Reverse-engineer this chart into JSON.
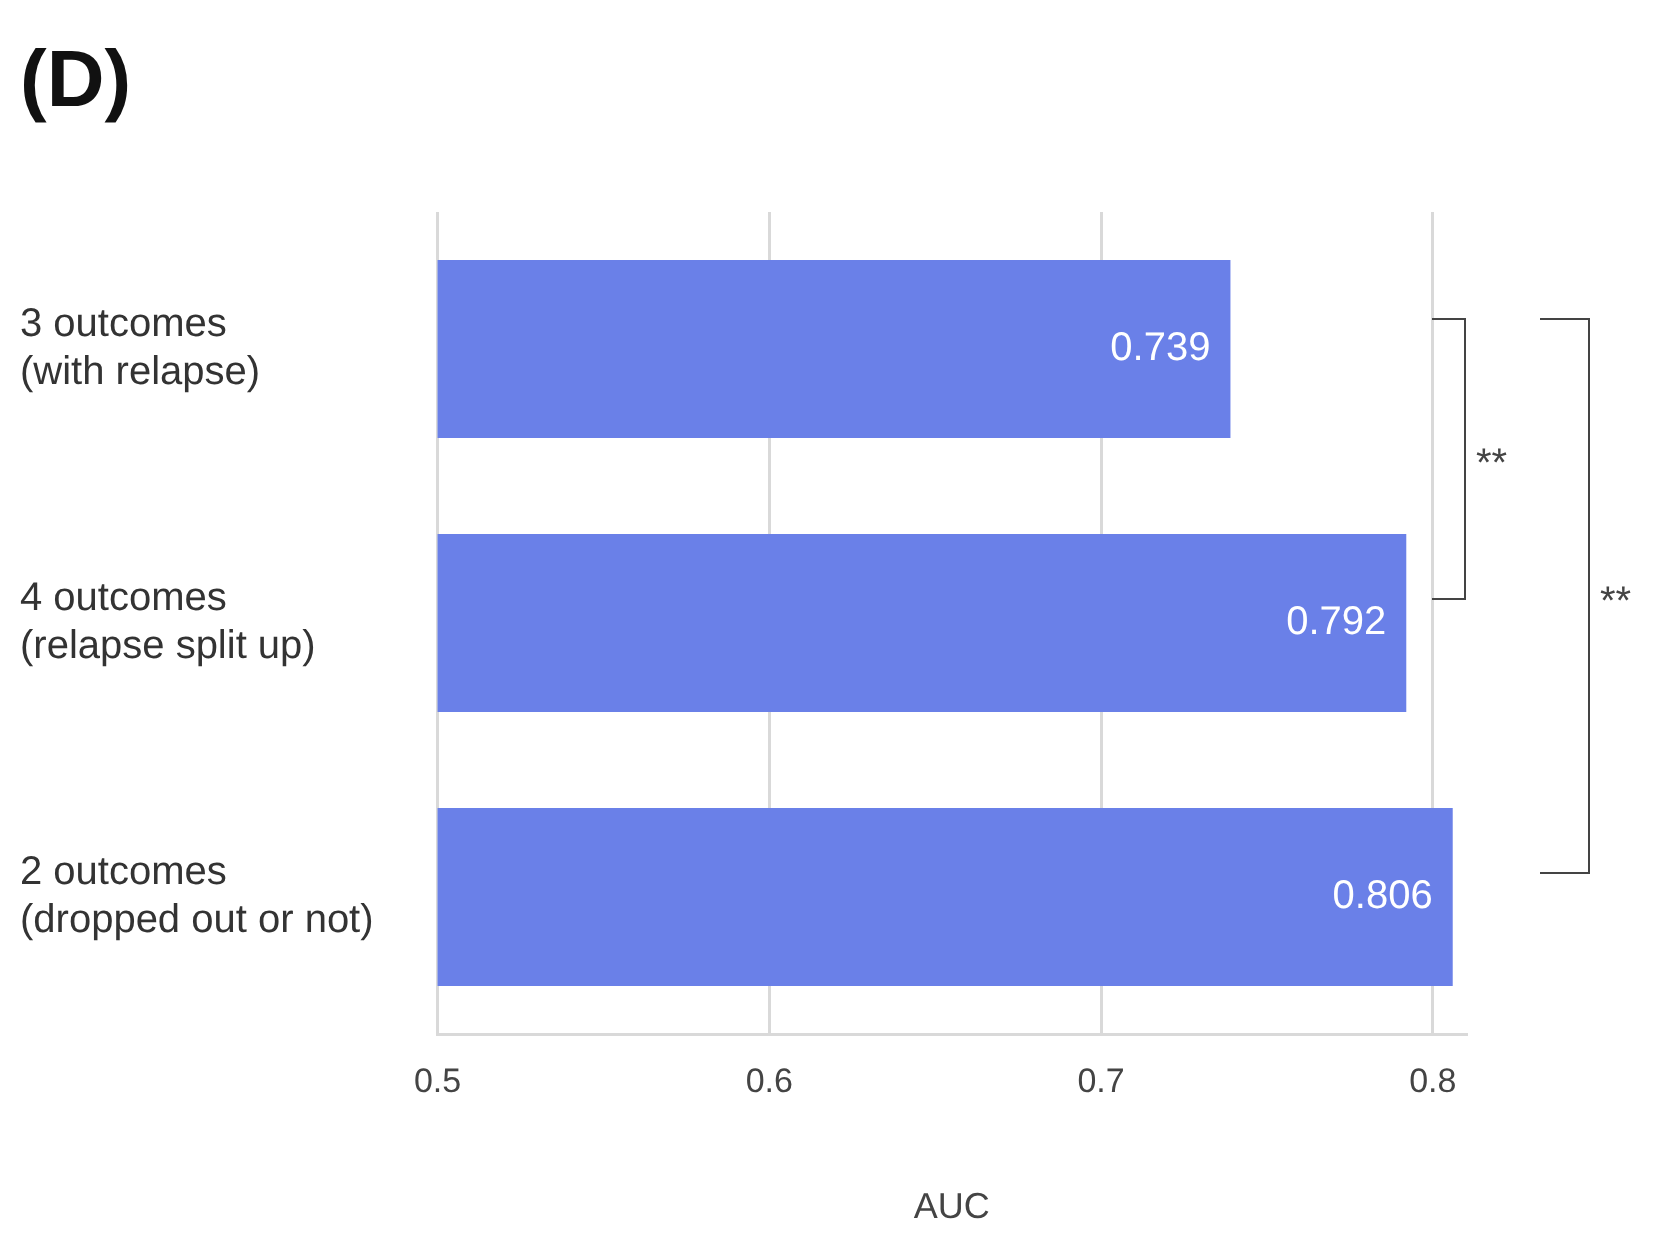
{
  "chart_data": {
    "type": "bar",
    "orientation": "horizontal",
    "title": "(D)",
    "xlabel": "AUC",
    "categories": [
      "3 outcomes\n(with relapse)",
      "4 outcomes\n(relapse split up)",
      "2 outcomes\n(dropped out or not)"
    ],
    "values": [
      0.739,
      0.792,
      0.806
    ],
    "color": "#6a80e8",
    "xlim": [
      0.5,
      0.81
    ],
    "xticks": [
      0.5,
      0.6,
      0.7,
      0.8
    ],
    "grid": "x",
    "legend": false,
    "data_labels": true,
    "annotations": [
      "**",
      "**"
    ]
  }
}
